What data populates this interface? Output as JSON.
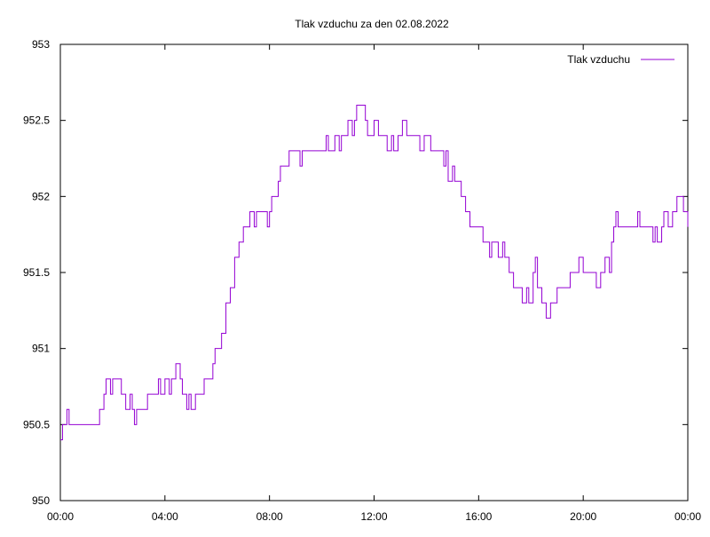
{
  "chart_data": {
    "type": "line",
    "title": "Tlak vzduchu za den 02.08.2022",
    "xlabel": "",
    "ylabel": "",
    "xlim": [
      "00:00",
      "24:00"
    ],
    "ylim": [
      950,
      953
    ],
    "x_ticks": [
      "00:00",
      "04:00",
      "08:00",
      "12:00",
      "16:00",
      "20:00",
      "00:00"
    ],
    "y_ticks": [
      "950",
      "950.5",
      "951",
      "951.5",
      "952",
      "952.5",
      "953"
    ],
    "grid": false,
    "legend": {
      "position": "top-right"
    },
    "colors": {
      "series": "#9400d3",
      "axis": "#000000"
    },
    "series": [
      {
        "name": "Tlak vzduchu",
        "points": [
          [
            "00:00",
            950.4
          ],
          [
            "00:05",
            950.5
          ],
          [
            "00:10",
            950.5
          ],
          [
            "00:15",
            950.6
          ],
          [
            "00:20",
            950.5
          ],
          [
            "00:30",
            950.5
          ],
          [
            "01:00",
            950.5
          ],
          [
            "01:20",
            950.5
          ],
          [
            "01:30",
            950.6
          ],
          [
            "01:40",
            950.7
          ],
          [
            "01:45",
            950.8
          ],
          [
            "01:55",
            950.7
          ],
          [
            "02:00",
            950.8
          ],
          [
            "02:10",
            950.8
          ],
          [
            "02:20",
            950.7
          ],
          [
            "02:30",
            950.6
          ],
          [
            "02:40",
            950.7
          ],
          [
            "02:45",
            950.6
          ],
          [
            "02:50",
            950.5
          ],
          [
            "02:55",
            950.6
          ],
          [
            "03:15",
            950.6
          ],
          [
            "03:20",
            950.7
          ],
          [
            "03:40",
            950.7
          ],
          [
            "03:45",
            950.8
          ],
          [
            "03:50",
            950.7
          ],
          [
            "04:00",
            950.8
          ],
          [
            "04:10",
            950.7
          ],
          [
            "04:15",
            950.8
          ],
          [
            "04:25",
            950.9
          ],
          [
            "04:35",
            950.8
          ],
          [
            "04:40",
            950.7
          ],
          [
            "04:50",
            950.6
          ],
          [
            "04:55",
            950.7
          ],
          [
            "05:00",
            950.6
          ],
          [
            "05:10",
            950.7
          ],
          [
            "05:20",
            950.7
          ],
          [
            "05:30",
            950.8
          ],
          [
            "05:40",
            950.8
          ],
          [
            "05:50",
            950.9
          ],
          [
            "05:55",
            951.0
          ],
          [
            "06:05",
            951.0
          ],
          [
            "06:10",
            951.1
          ],
          [
            "06:20",
            951.3
          ],
          [
            "06:30",
            951.4
          ],
          [
            "06:40",
            951.6
          ],
          [
            "06:50",
            951.7
          ],
          [
            "07:00",
            951.8
          ],
          [
            "07:10",
            951.8
          ],
          [
            "07:15",
            951.9
          ],
          [
            "07:25",
            951.8
          ],
          [
            "07:30",
            951.9
          ],
          [
            "07:50",
            951.9
          ],
          [
            "07:55",
            951.8
          ],
          [
            "08:00",
            951.9
          ],
          [
            "08:05",
            952.0
          ],
          [
            "08:15",
            952.0
          ],
          [
            "08:20",
            952.1
          ],
          [
            "08:25",
            952.2
          ],
          [
            "08:30",
            952.2
          ],
          [
            "08:40",
            952.2
          ],
          [
            "08:45",
            952.3
          ],
          [
            "09:00",
            952.3
          ],
          [
            "09:10",
            952.2
          ],
          [
            "09:15",
            952.3
          ],
          [
            "09:30",
            952.3
          ],
          [
            "09:50",
            952.3
          ],
          [
            "10:00",
            952.3
          ],
          [
            "10:10",
            952.4
          ],
          [
            "10:15",
            952.3
          ],
          [
            "10:25",
            952.3
          ],
          [
            "10:30",
            952.4
          ],
          [
            "10:40",
            952.3
          ],
          [
            "10:45",
            952.4
          ],
          [
            "10:55",
            952.4
          ],
          [
            "11:00",
            952.5
          ],
          [
            "11:10",
            952.4
          ],
          [
            "11:15",
            952.5
          ],
          [
            "11:20",
            952.6
          ],
          [
            "11:30",
            952.6
          ],
          [
            "11:40",
            952.5
          ],
          [
            "11:45",
            952.4
          ],
          [
            "11:55",
            952.4
          ],
          [
            "12:00",
            952.5
          ],
          [
            "12:10",
            952.4
          ],
          [
            "12:20",
            952.4
          ],
          [
            "12:30",
            952.3
          ],
          [
            "12:40",
            952.4
          ],
          [
            "12:45",
            952.3
          ],
          [
            "12:55",
            952.4
          ],
          [
            "13:05",
            952.5
          ],
          [
            "13:15",
            952.4
          ],
          [
            "13:30",
            952.4
          ],
          [
            "13:45",
            952.3
          ],
          [
            "13:55",
            952.4
          ],
          [
            "14:05",
            952.4
          ],
          [
            "14:10",
            952.3
          ],
          [
            "14:30",
            952.3
          ],
          [
            "14:40",
            952.2
          ],
          [
            "14:45",
            952.3
          ],
          [
            "14:50",
            952.1
          ],
          [
            "15:00",
            952.2
          ],
          [
            "15:05",
            952.1
          ],
          [
            "15:15",
            952.1
          ],
          [
            "15:20",
            952.0
          ],
          [
            "15:30",
            951.9
          ],
          [
            "15:40",
            951.8
          ],
          [
            "16:00",
            951.8
          ],
          [
            "16:10",
            951.7
          ],
          [
            "16:20",
            951.7
          ],
          [
            "16:25",
            951.6
          ],
          [
            "16:30",
            951.7
          ],
          [
            "16:40",
            951.7
          ],
          [
            "16:45",
            951.6
          ],
          [
            "16:55",
            951.7
          ],
          [
            "17:00",
            951.6
          ],
          [
            "17:10",
            951.5
          ],
          [
            "17:20",
            951.4
          ],
          [
            "17:30",
            951.4
          ],
          [
            "17:40",
            951.3
          ],
          [
            "17:50",
            951.4
          ],
          [
            "17:55",
            951.3
          ],
          [
            "18:05",
            951.5
          ],
          [
            "18:10",
            951.6
          ],
          [
            "18:15",
            951.4
          ],
          [
            "18:25",
            951.3
          ],
          [
            "18:35",
            951.2
          ],
          [
            "18:45",
            951.3
          ],
          [
            "18:50",
            951.3
          ],
          [
            "19:00",
            951.4
          ],
          [
            "19:20",
            951.4
          ],
          [
            "19:30",
            951.5
          ],
          [
            "19:40",
            951.5
          ],
          [
            "19:50",
            951.6
          ],
          [
            "20:00",
            951.5
          ],
          [
            "20:20",
            951.5
          ],
          [
            "20:30",
            951.4
          ],
          [
            "20:40",
            951.5
          ],
          [
            "20:50",
            951.6
          ],
          [
            "21:00",
            951.5
          ],
          [
            "21:05",
            951.7
          ],
          [
            "21:10",
            951.8
          ],
          [
            "21:15",
            951.9
          ],
          [
            "21:20",
            951.8
          ],
          [
            "21:30",
            951.8
          ],
          [
            "22:00",
            951.8
          ],
          [
            "22:05",
            951.9
          ],
          [
            "22:10",
            951.8
          ],
          [
            "22:30",
            951.8
          ],
          [
            "22:40",
            951.7
          ],
          [
            "22:45",
            951.8
          ],
          [
            "22:50",
            951.7
          ],
          [
            "23:00",
            951.8
          ],
          [
            "23:05",
            951.9
          ],
          [
            "23:15",
            951.8
          ],
          [
            "23:25",
            951.9
          ],
          [
            "23:35",
            952.0
          ],
          [
            "23:45",
            952.0
          ],
          [
            "23:50",
            951.9
          ],
          [
            "24:00",
            951.8
          ]
        ]
      }
    ]
  }
}
